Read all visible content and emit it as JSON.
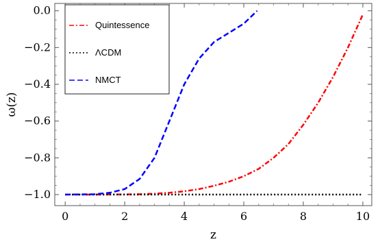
{
  "chart_data": {
    "type": "line",
    "xlabel": "z",
    "ylabel": "ω(z)",
    "xlim": [
      -0.35,
      10.3
    ],
    "ylim": [
      -1.06,
      0.04
    ],
    "x_ticks": [
      0,
      2,
      4,
      6,
      8,
      10
    ],
    "x_tick_labels": [
      "0",
      "2",
      "4",
      "6",
      "8",
      "10"
    ],
    "y_ticks": [
      -1.0,
      -0.8,
      -0.6,
      -0.4,
      -0.2,
      0.0
    ],
    "y_tick_labels": [
      "−1.0",
      "−0.8",
      "−0.6",
      "−0.4",
      "−0.2",
      "0.0"
    ],
    "grid": false,
    "legend_position": "top-left",
    "series": [
      {
        "name": "Quintessence",
        "color": "#ff0000",
        "style": "dash-dot",
        "x": [
          0,
          1,
          2,
          2.5,
          3,
          3.5,
          4,
          4.5,
          5,
          5.5,
          6,
          6.5,
          7,
          7.5,
          8,
          8.5,
          9,
          9.5,
          10
        ],
        "y": [
          -1.0,
          -1.0,
          -0.999,
          -0.998,
          -0.995,
          -0.99,
          -0.982,
          -0.97,
          -0.952,
          -0.93,
          -0.9,
          -0.86,
          -0.8,
          -0.725,
          -0.62,
          -0.5,
          -0.36,
          -0.2,
          -0.02
        ]
      },
      {
        "name": "ΛCDM",
        "color": "#000000",
        "style": "dotted",
        "x": [
          0,
          10
        ],
        "y": [
          -1.0,
          -1.0
        ]
      },
      {
        "name": "NMCT",
        "color": "#0000ff",
        "style": "dashed",
        "x": [
          0,
          1,
          1.5,
          2,
          2.5,
          3,
          3.5,
          4,
          4.5,
          5,
          5.5,
          6,
          6.45
        ],
        "y": [
          -1.0,
          -0.998,
          -0.99,
          -0.97,
          -0.915,
          -0.8,
          -0.6,
          -0.4,
          -0.26,
          -0.17,
          -0.12,
          -0.07,
          0.0
        ]
      }
    ]
  }
}
